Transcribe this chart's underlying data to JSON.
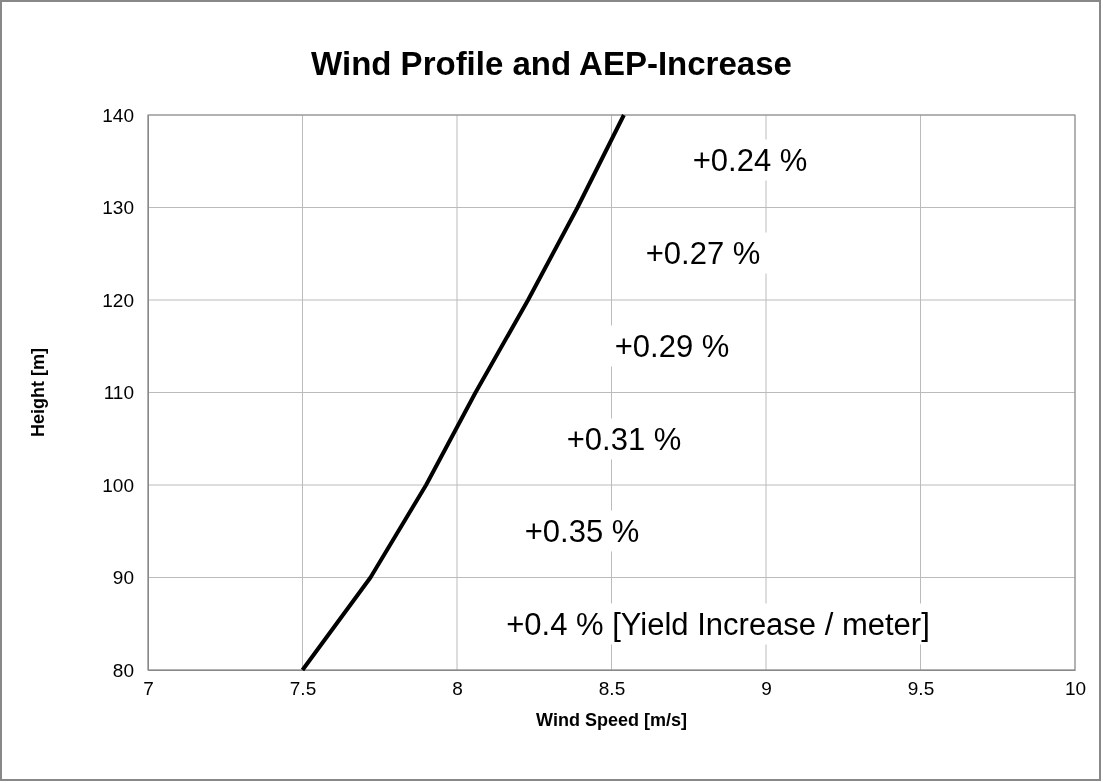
{
  "chart_data": {
    "type": "line",
    "title": "Wind Profile and AEP-Increase",
    "xlabel": "Wind Speed [m/s]",
    "ylabel": "Height [m]",
    "x": [
      7.5,
      7.72,
      7.9,
      8.06,
      8.23,
      8.39,
      8.54
    ],
    "series": [
      {
        "color": "#000000",
        "values": [
          80,
          90,
          100,
          110,
          120,
          130,
          140
        ]
      }
    ],
    "xlim": [
      7,
      10
    ],
    "xticks": [
      7,
      7.5,
      8,
      8.5,
      9,
      9.5,
      10
    ],
    "ylim": [
      80,
      140
    ],
    "yticks": [
      80,
      90,
      100,
      110,
      120,
      130,
      140
    ],
    "grid": true,
    "marker": "none",
    "line_style": "solid",
    "annotations": [
      "+0.24 %",
      "+0.27 %",
      "+0.29 %",
      "+0.31 %",
      "+0.35 %",
      "+0.4 % [Yield Increase / meter]"
    ]
  }
}
